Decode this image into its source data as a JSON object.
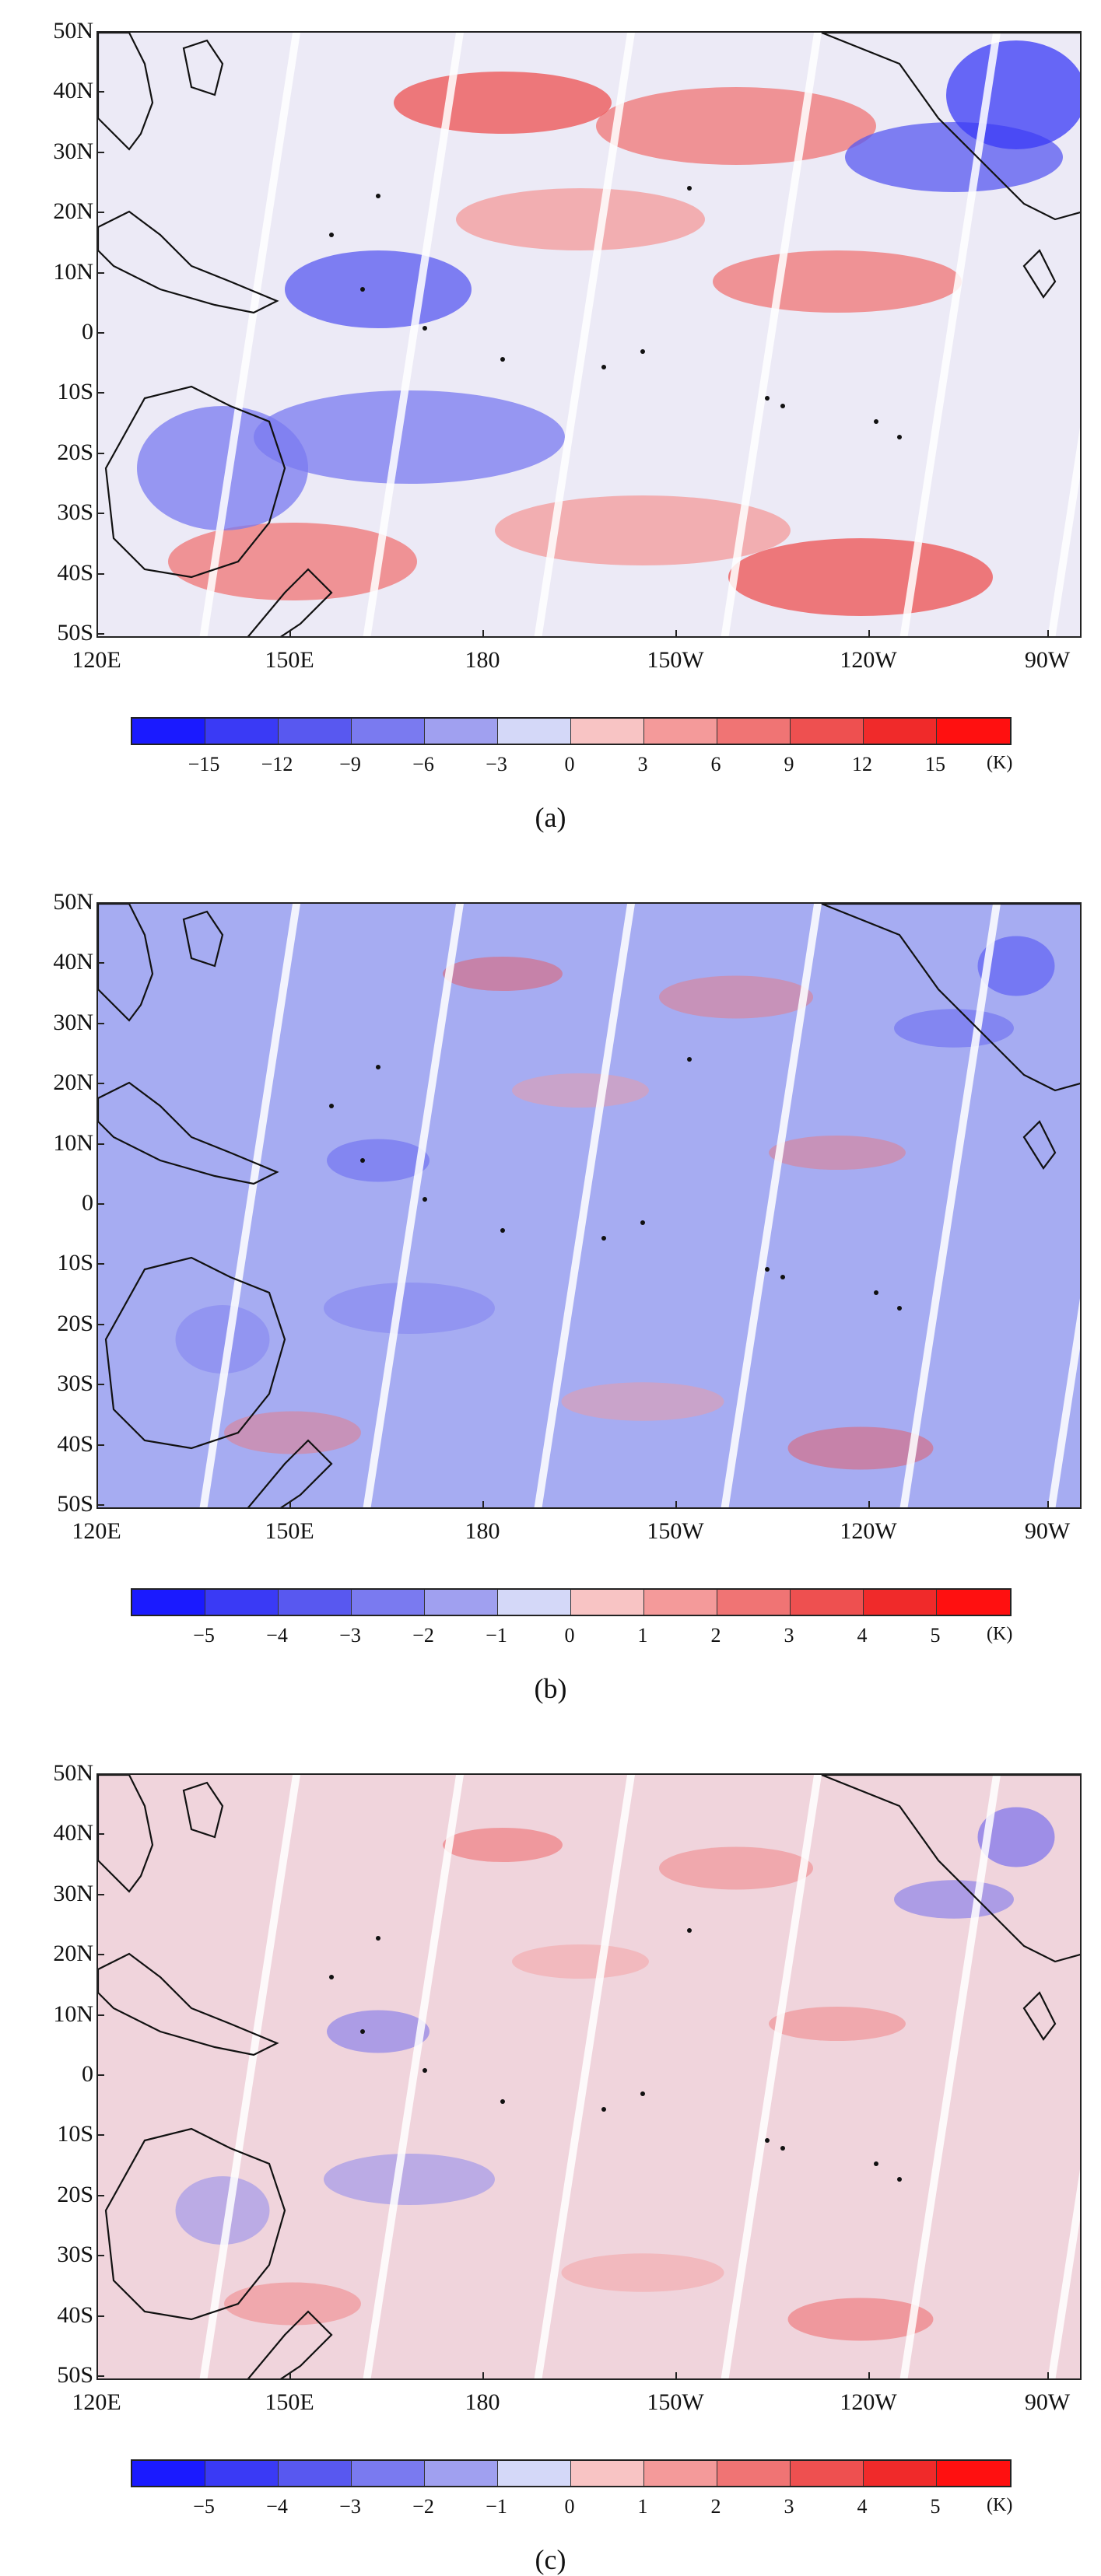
{
  "figure": {
    "panels": [
      {
        "id": "a",
        "caption": "(a)",
        "lat_ticks": [
          "50N",
          "40N",
          "30N",
          "20N",
          "10N",
          "0",
          "10S",
          "20S",
          "30S",
          "40S",
          "50S"
        ],
        "lon_ticks": [
          "120E",
          "150E",
          "180",
          "150W",
          "120W",
          "90W"
        ],
        "colorbar": {
          "labels": [
            "−15",
            "−12",
            "−9",
            "−6",
            "−3",
            "0",
            "3",
            "6",
            "9",
            "12",
            "15"
          ],
          "unit": "(K)",
          "colors": [
            "#1a1aff",
            "#3a3af5",
            "#5858f0",
            "#7a7af0",
            "#a0a0f0",
            "#d4d8f8",
            "#f8c4c4",
            "#f49a9a",
            "#f07474",
            "#ee5050",
            "#f02a2a",
            "#ff1010"
          ]
        },
        "background_color": "#eceaf6"
      },
      {
        "id": "b",
        "caption": "(b)",
        "lat_ticks": [
          "50N",
          "40N",
          "30N",
          "20N",
          "10N",
          "0",
          "10S",
          "20S",
          "30S",
          "40S",
          "50S"
        ],
        "lon_ticks": [
          "120E",
          "150E",
          "180",
          "150W",
          "120W",
          "90W"
        ],
        "colorbar": {
          "labels": [
            "−5",
            "−4",
            "−3",
            "−2",
            "−1",
            "0",
            "1",
            "2",
            "3",
            "4",
            "5"
          ],
          "unit": "(K)",
          "colors": [
            "#1a1aff",
            "#3a3af5",
            "#5858f0",
            "#7a7af0",
            "#a0a0f0",
            "#d4d8f8",
            "#f8c4c4",
            "#f49a9a",
            "#f07474",
            "#ee5050",
            "#f02a2a",
            "#ff1010"
          ]
        },
        "background_color": "#a6acf2"
      },
      {
        "id": "c",
        "caption": "(c)",
        "lat_ticks": [
          "50N",
          "40N",
          "30N",
          "20N",
          "10N",
          "0",
          "10S",
          "20S",
          "30S",
          "40S",
          "50S"
        ],
        "lon_ticks": [
          "120E",
          "150E",
          "180",
          "150W",
          "120W",
          "90W"
        ],
        "colorbar": {
          "labels": [
            "−5",
            "−4",
            "−3",
            "−2",
            "−1",
            "0",
            "1",
            "2",
            "3",
            "4",
            "5"
          ],
          "unit": "(K)",
          "colors": [
            "#1a1aff",
            "#3a3af5",
            "#5858f0",
            "#7a7af0",
            "#a0a0f0",
            "#d4d8f8",
            "#f8c4c4",
            "#f49a9a",
            "#f07474",
            "#ee5050",
            "#f02a2a",
            "#ff1010"
          ]
        },
        "background_color": "#f0d4dc"
      }
    ]
  }
}
